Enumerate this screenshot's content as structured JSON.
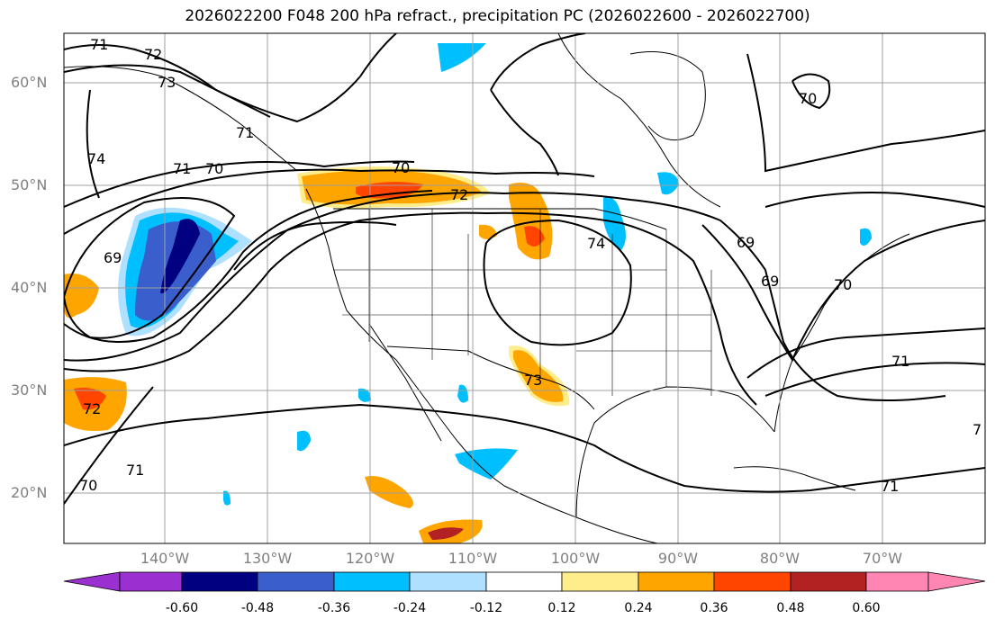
{
  "title": "2026022200 F048 200 hPa refract., precipitation PC (2026022600 - 2026022700)",
  "lat_labels": [
    "60°N",
    "50°N",
    "40°N",
    "30°N",
    "20°N"
  ],
  "lon_labels": [
    "140°W",
    "130°W",
    "120°W",
    "110°W",
    "100°W",
    "90°W",
    "80°W",
    "70°W"
  ],
  "colorbar": {
    "ticks": [
      "-0.60",
      "-0.48",
      "-0.36",
      "-0.24",
      "-0.12",
      "0.12",
      "0.24",
      "0.36",
      "0.48",
      "0.60"
    ],
    "colors": [
      "#9b30d0",
      "#000080",
      "#3a5fcd",
      "#00bfff",
      "#b0e0ff",
      "#ffffff",
      "#ffec8b",
      "#ffa500",
      "#ff4500",
      "#b22222",
      "#ff85b3"
    ]
  },
  "contour_labels": [
    "71",
    "72",
    "73",
    "74",
    "71",
    "70",
    "69",
    "70",
    "72",
    "74",
    "73",
    "72",
    "71",
    "70",
    "70",
    "71",
    "71",
    "69",
    "69",
    "70",
    "71",
    "7"
  ],
  "colors": {
    "contour": "#000000",
    "grid": "#a0a0a0",
    "axis_label": "#808080"
  }
}
